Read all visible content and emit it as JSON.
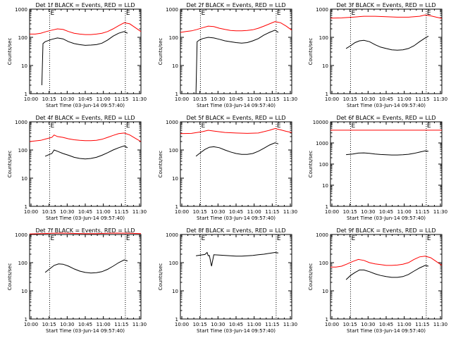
{
  "common": {
    "ylabel": "Counts/sec",
    "xlabel": "Start Time (03-Jun-14 09:57:40)",
    "x_ticks": [
      "10:00",
      "10:15",
      "10:30",
      "10:45",
      "11:00",
      "11:15",
      "11:30"
    ],
    "marker": "E",
    "colors": {
      "events": "#000000",
      "lld": "#ff0000"
    }
  },
  "chart_data": [
    {
      "type": "line",
      "title": "Det 1f BLACK = Events, RED = LLD",
      "ylog": true,
      "ylim": [
        1,
        1000
      ],
      "y_ticks": [
        "1",
        "10",
        "100",
        "1000"
      ],
      "xlim_min": [
        0,
        100
      ],
      "markers_min": [
        18,
        86
      ],
      "series": [
        {
          "name": "Events",
          "x": [
            11,
            12,
            14,
            20,
            25,
            30,
            35,
            40,
            45,
            50,
            55,
            60,
            65,
            70,
            75,
            80,
            85,
            88
          ],
          "y": [
            2,
            60,
            70,
            85,
            95,
            88,
            70,
            60,
            55,
            52,
            53,
            55,
            62,
            80,
            110,
            140,
            160,
            140
          ]
        },
        {
          "name": "LLD",
          "x": [
            0,
            5,
            10,
            15,
            20,
            25,
            30,
            35,
            40,
            45,
            50,
            55,
            60,
            65,
            70,
            75,
            80,
            85,
            90,
            95,
            100
          ],
          "y": [
            130,
            130,
            140,
            160,
            180,
            200,
            190,
            160,
            140,
            130,
            125,
            125,
            130,
            140,
            160,
            200,
            260,
            330,
            300,
            220,
            160
          ]
        }
      ]
    },
    {
      "type": "line",
      "title": "Det 2f BLACK = Events, RED = LLD",
      "ylog": true,
      "ylim": [
        1,
        1000
      ],
      "y_ticks": [
        "1",
        "10",
        "100",
        "1000"
      ],
      "xlim_min": [
        0,
        100
      ],
      "markers_min": [
        18,
        86
      ],
      "series": [
        {
          "name": "Events",
          "x": [
            14,
            15,
            17,
            20,
            25,
            30,
            35,
            40,
            45,
            50,
            55,
            60,
            65,
            70,
            75,
            80,
            85,
            88
          ],
          "y": [
            1,
            70,
            80,
            90,
            100,
            95,
            85,
            75,
            70,
            65,
            62,
            65,
            75,
            90,
            120,
            150,
            180,
            150
          ]
        },
        {
          "name": "LLD",
          "x": [
            0,
            5,
            10,
            15,
            20,
            25,
            30,
            35,
            40,
            45,
            50,
            55,
            60,
            65,
            70,
            75,
            80,
            85,
            90,
            95,
            100
          ],
          "y": [
            150,
            160,
            170,
            190,
            220,
            250,
            240,
            210,
            190,
            175,
            170,
            170,
            175,
            185,
            210,
            250,
            300,
            360,
            330,
            250,
            180
          ]
        }
      ]
    },
    {
      "type": "line",
      "title": "Det 3f BLACK = Events, RED = LLD",
      "ylog": true,
      "ylim": [
        1,
        1000
      ],
      "y_ticks": [
        "1",
        "10",
        "100",
        "1000"
      ],
      "xlim_min": [
        0,
        100
      ],
      "markers_min": [
        18,
        86
      ],
      "series": [
        {
          "name": "Events",
          "x": [
            14,
            18,
            22,
            26,
            30,
            35,
            40,
            45,
            50,
            55,
            60,
            65,
            70,
            75,
            80,
            85,
            88
          ],
          "y": [
            40,
            50,
            65,
            75,
            78,
            70,
            55,
            45,
            40,
            36,
            35,
            36,
            40,
            50,
            70,
            95,
            110
          ]
        },
        {
          "name": "LLD",
          "x": [
            0,
            10,
            20,
            30,
            40,
            50,
            60,
            70,
            80,
            85,
            90,
            95,
            100
          ],
          "y": [
            480,
            490,
            520,
            560,
            560,
            540,
            520,
            520,
            560,
            620,
            580,
            520,
            470
          ]
        }
      ]
    },
    {
      "type": "line",
      "title": "Det 4f BLACK = Events, RED = LLD",
      "ylog": true,
      "ylim": [
        1,
        1000
      ],
      "y_ticks": [
        "1",
        "10",
        "100",
        "1000"
      ],
      "xlim_min": [
        0,
        100
      ],
      "markers_min": [
        18,
        86
      ],
      "series": [
        {
          "name": "Events",
          "x": [
            14,
            18,
            20,
            22,
            25,
            30,
            35,
            40,
            45,
            50,
            55,
            60,
            65,
            70,
            75,
            80,
            85,
            88
          ],
          "y": [
            60,
            70,
            75,
            100,
            90,
            75,
            65,
            55,
            50,
            48,
            50,
            55,
            65,
            80,
            100,
            120,
            140,
            120
          ]
        },
        {
          "name": "LLD",
          "x": [
            0,
            5,
            10,
            15,
            20,
            22,
            25,
            30,
            35,
            40,
            45,
            50,
            55,
            60,
            65,
            70,
            75,
            80,
            85,
            90,
            95,
            100
          ],
          "y": [
            200,
            210,
            220,
            250,
            280,
            340,
            300,
            280,
            250,
            230,
            220,
            215,
            215,
            220,
            240,
            280,
            330,
            380,
            400,
            340,
            260,
            200
          ]
        }
      ]
    },
    {
      "type": "line",
      "title": "Det 5f BLACK = Events, RED = LLD",
      "ylog": true,
      "ylim": [
        1,
        1000
      ],
      "y_ticks": [
        "1",
        "10",
        "100",
        "1000"
      ],
      "xlim_min": [
        0,
        100
      ],
      "markers_min": [
        18,
        86
      ],
      "series": [
        {
          "name": "Events",
          "x": [
            14,
            18,
            22,
            26,
            30,
            35,
            40,
            45,
            50,
            55,
            60,
            65,
            70,
            75,
            80,
            85,
            88
          ],
          "y": [
            60,
            80,
            105,
            125,
            130,
            120,
            100,
            85,
            75,
            70,
            70,
            75,
            90,
            115,
            150,
            180,
            165
          ]
        },
        {
          "name": "LLD",
          "x": [
            0,
            10,
            20,
            25,
            30,
            40,
            50,
            60,
            70,
            80,
            85,
            90,
            95,
            100
          ],
          "y": [
            380,
            390,
            450,
            500,
            470,
            420,
            400,
            390,
            400,
            500,
            580,
            520,
            460,
            420
          ]
        }
      ]
    },
    {
      "type": "line",
      "title": "Det 6f BLACK = Events, RED = LLD",
      "ylog": true,
      "ylim": [
        1,
        10000
      ],
      "y_ticks": [
        "1",
        "10",
        "100",
        "1000",
        "10000"
      ],
      "xlim_min": [
        0,
        100
      ],
      "markers_min": [
        18,
        86
      ],
      "series": [
        {
          "name": "Events",
          "x": [
            14,
            20,
            25,
            30,
            35,
            40,
            45,
            50,
            55,
            60,
            65,
            70,
            75,
            80,
            85,
            88
          ],
          "y": [
            280,
            300,
            330,
            340,
            320,
            300,
            285,
            275,
            270,
            270,
            275,
            290,
            320,
            370,
            420,
            400
          ]
        },
        {
          "name": "LLD",
          "x": [
            0,
            100
          ],
          "y": [
            4000,
            4000
          ]
        }
      ]
    },
    {
      "type": "line",
      "title": "Det 7f BLACK = Events, RED = LLD",
      "ylog": true,
      "ylim": [
        1,
        1000
      ],
      "y_ticks": [
        "1",
        "10",
        "100",
        "1000"
      ],
      "xlim_min": [
        0,
        100
      ],
      "markers_min": [
        18,
        86
      ],
      "series": [
        {
          "name": "Events",
          "x": [
            14,
            18,
            22,
            26,
            30,
            35,
            40,
            45,
            50,
            55,
            60,
            65,
            70,
            75,
            80,
            85,
            88
          ],
          "y": [
            45,
            60,
            80,
            90,
            88,
            75,
            60,
            50,
            45,
            43,
            44,
            48,
            58,
            75,
            100,
            125,
            115
          ]
        },
        {
          "name": "LLD",
          "x": [
            0,
            10,
            20,
            30,
            40,
            50,
            60,
            70,
            80,
            90,
            100
          ],
          "y": [
            1050,
            1080,
            1100,
            1120,
            1090,
            1070,
            1080,
            1100,
            1120,
            1100,
            1070
          ]
        }
      ]
    },
    {
      "type": "line",
      "title": "Det 8f BLACK = Events, RED = LLD",
      "ylog": true,
      "ylim": [
        1,
        1000
      ],
      "y_ticks": [
        "1",
        "10",
        "100",
        "1000"
      ],
      "xlim_min": [
        0,
        100
      ],
      "markers_min": [
        18,
        86
      ],
      "series": [
        {
          "name": "Events",
          "x": [
            14,
            18,
            22,
            24,
            25,
            26,
            28,
            30,
            35,
            40,
            45,
            50,
            55,
            60,
            65,
            70,
            75,
            80,
            85,
            88
          ],
          "y": [
            175,
            185,
            195,
            230,
            175,
            180,
            75,
            190,
            185,
            180,
            175,
            170,
            170,
            175,
            180,
            190,
            200,
            215,
            230,
            220
          ]
        }
      ]
    },
    {
      "type": "line",
      "title": "Det 9f BLACK = Events, RED = LLD",
      "ylog": true,
      "ylim": [
        1,
        1000
      ],
      "y_ticks": [
        "1",
        "10",
        "100",
        "1000"
      ],
      "xlim_min": [
        0,
        100
      ],
      "markers_min": [
        18,
        86
      ],
      "series": [
        {
          "name": "Events",
          "x": [
            14,
            18,
            22,
            26,
            30,
            35,
            40,
            45,
            50,
            55,
            60,
            65,
            70,
            75,
            80,
            85,
            88
          ],
          "y": [
            25,
            35,
            45,
            55,
            55,
            48,
            40,
            35,
            32,
            30,
            30,
            32,
            38,
            50,
            65,
            80,
            75
          ]
        },
        {
          "name": "LLD",
          "x": [
            0,
            5,
            10,
            15,
            20,
            25,
            30,
            35,
            40,
            45,
            50,
            55,
            60,
            65,
            70,
            75,
            80,
            85,
            90,
            95,
            100
          ],
          "y": [
            70,
            70,
            75,
            90,
            110,
            130,
            120,
            100,
            90,
            85,
            80,
            80,
            82,
            88,
            100,
            130,
            160,
            170,
            150,
            110,
            80
          ]
        }
      ]
    }
  ]
}
